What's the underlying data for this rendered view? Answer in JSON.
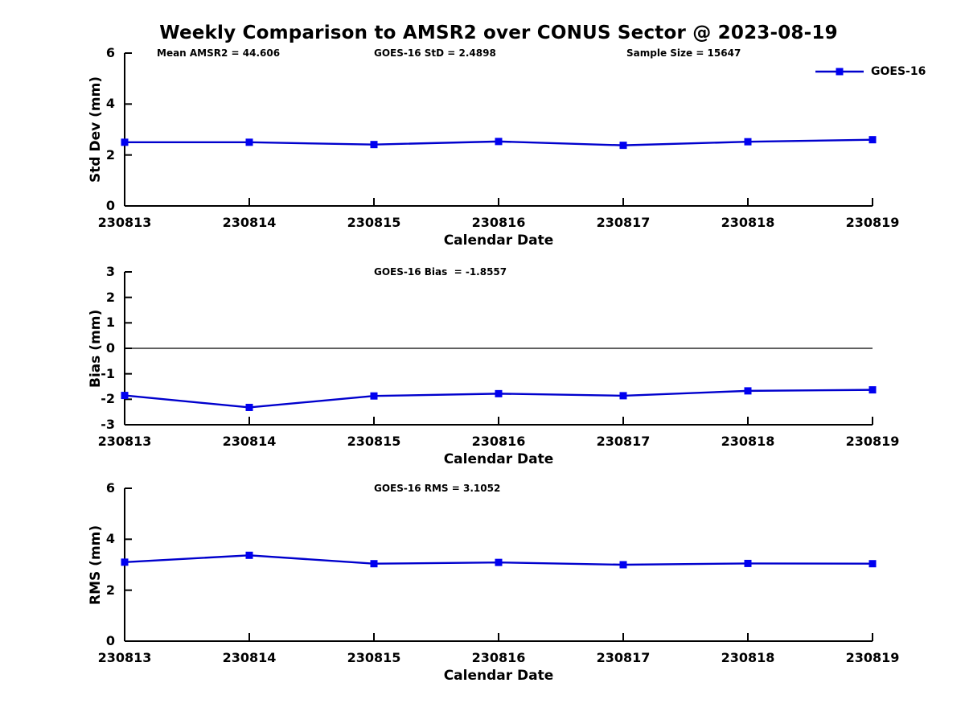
{
  "figure": {
    "title": "Weekly Comparison to AMSR2 over CONUS Sector @ 2023-08-19",
    "legend_label": "GOES-16",
    "colors": {
      "line": "#0000cd",
      "marker": "#0000f0",
      "axis": "#000000",
      "zero_line": "#000000"
    }
  },
  "chart_data": [
    {
      "type": "line",
      "ylabel": "Std Dev (mm)",
      "xlabel": "Calendar Date",
      "title_annotations": [
        "Mean AMSR2 = 44.606",
        "GOES-16 StD = 2.4898",
        "Sample Size = 15647"
      ],
      "categories": [
        "230813",
        "230814",
        "230815",
        "230816",
        "230817",
        "230818",
        "230819"
      ],
      "series": [
        {
          "name": "GOES-16",
          "values": [
            2.5,
            2.5,
            2.41,
            2.53,
            2.38,
            2.52,
            2.6
          ]
        }
      ],
      "ylim": [
        0,
        6
      ],
      "yticks": [
        0,
        2,
        4,
        6
      ],
      "zero_line": false,
      "grid": false,
      "legend_position": "top-right-outside"
    },
    {
      "type": "line",
      "ylabel": "Bias (mm)",
      "xlabel": "Calendar Date",
      "annotation": "GOES-16 Bias  = -1.8557",
      "categories": [
        "230813",
        "230814",
        "230815",
        "230816",
        "230817",
        "230818",
        "230819"
      ],
      "series": [
        {
          "name": "GOES-16",
          "values": [
            -1.85,
            -2.32,
            -1.87,
            -1.78,
            -1.86,
            -1.67,
            -1.63
          ]
        }
      ],
      "ylim": [
        -3,
        3
      ],
      "yticks": [
        3,
        2,
        1,
        0,
        -1,
        -2,
        -3
      ],
      "zero_line": true,
      "grid": false
    },
    {
      "type": "line",
      "ylabel": "RMS (mm)",
      "xlabel": "Calendar Date",
      "annotation": "GOES-16 RMS = 3.1052",
      "categories": [
        "230813",
        "230814",
        "230815",
        "230816",
        "230817",
        "230818",
        "230819"
      ],
      "series": [
        {
          "name": "GOES-16",
          "values": [
            3.1,
            3.37,
            3.04,
            3.09,
            3.0,
            3.05,
            3.04
          ]
        }
      ],
      "ylim": [
        0,
        6
      ],
      "yticks": [
        0,
        2,
        4,
        6
      ],
      "zero_line": false,
      "grid": false
    }
  ]
}
